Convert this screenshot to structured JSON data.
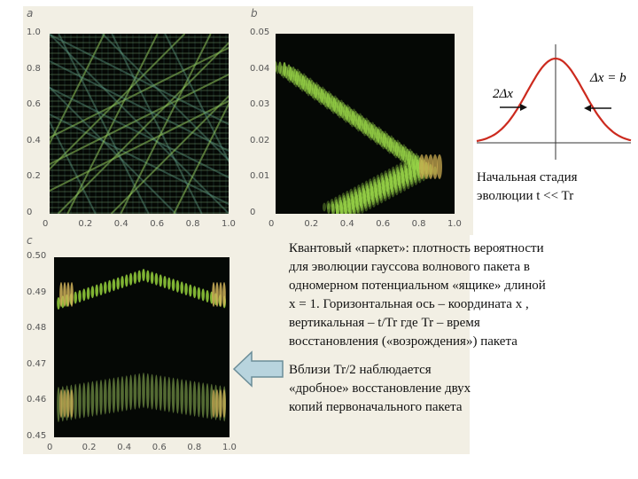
{
  "panels": {
    "a": {
      "label": "a",
      "y_ticks": [
        "1.0",
        "0.8",
        "0.6",
        "0.4",
        "0.2",
        "0"
      ],
      "x_ticks": [
        "0",
        "0.2",
        "0.4",
        "0.6",
        "0.8",
        "1.0"
      ]
    },
    "b": {
      "label": "b",
      "y_ticks": [
        "0.05",
        "0.04",
        "0.03",
        "0.02",
        "0.01",
        "0"
      ],
      "x_ticks": [
        "0",
        "0.2",
        "0.4",
        "0.6",
        "0.8",
        "1.0"
      ]
    },
    "c": {
      "label": "c",
      "y_ticks": [
        "0.50",
        "0.49",
        "0.48",
        "0.47",
        "0.46",
        "0.45"
      ],
      "x_ticks": [
        "0",
        "0.2",
        "0.4",
        "0.6",
        "0.8",
        "1.0"
      ]
    }
  },
  "gaussian": {
    "label_right": "Δx = b",
    "label_left": "2Δx",
    "colors": {
      "curve": "#cc2a1e",
      "axis": "#333333"
    }
  },
  "captions": {
    "initial_stage": [
      "Начальная стадия",
      "эволюции t << Tr"
    ],
    "main": [
      "Квантовый «паркет»: плотность вероятности",
      "для эволюции гауссова волнового пакета в",
      "одномерном потенциальном «ящике» длиной",
      "x = 1. Горизонтальная ось – координата x ,",
      "вертикальная – t/Tr где Tr – время",
      "восстановления («возрождения») пакета"
    ],
    "fractional": [
      "Вблизи Tr/2 наблюдается",
      "«дробное» восстановление двух",
      "копий первоначального пакета"
    ]
  },
  "colors": {
    "arrow_fill": "#b8d4de",
    "arrow_stroke": "#6b8d98",
    "panel_bg": "#f2efe4",
    "plot_bg": "#050805",
    "wave": "#8fd14a"
  }
}
